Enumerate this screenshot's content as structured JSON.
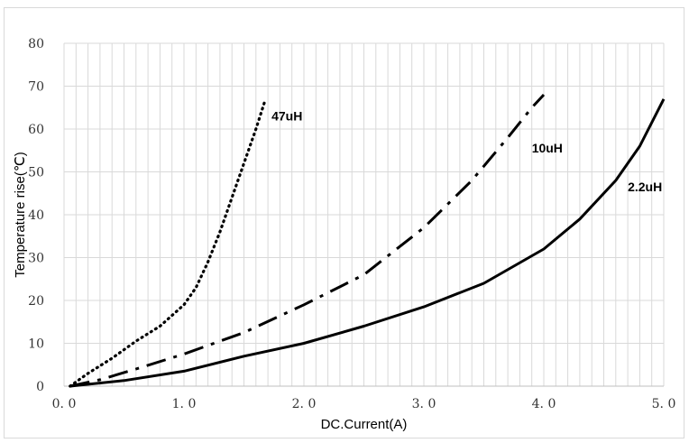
{
  "chart_data": {
    "type": "line",
    "xlabel": "DC.Current(A)",
    "ylabel": "Temperature rise(℃)",
    "xlim": [
      0,
      5
    ],
    "ylim": [
      0,
      80
    ],
    "x_ticks": [
      "0. 0",
      "1. 0",
      "2. 0",
      "3. 0",
      "4. 0",
      "5. 0"
    ],
    "y_ticks": [
      "0",
      "10",
      "20",
      "30",
      "40",
      "50",
      "60",
      "70",
      "80"
    ],
    "x_minor_step": 0.1,
    "y_major_step": 10,
    "grid": true,
    "series": [
      {
        "name": "47uH",
        "line_style": "dotted",
        "color": "#000000",
        "points": [
          [
            0.05,
            0
          ],
          [
            0.2,
            3
          ],
          [
            0.4,
            6.5
          ],
          [
            0.6,
            10.5
          ],
          [
            0.8,
            14
          ],
          [
            1.0,
            19
          ],
          [
            1.1,
            23
          ],
          [
            1.2,
            29
          ],
          [
            1.3,
            36
          ],
          [
            1.4,
            44
          ],
          [
            1.5,
            52
          ],
          [
            1.6,
            60
          ],
          [
            1.68,
            67
          ]
        ]
      },
      {
        "name": "10uH",
        "line_style": "dash-dot",
        "color": "#000000",
        "points": [
          [
            0.05,
            0
          ],
          [
            0.3,
            1.5
          ],
          [
            0.6,
            4
          ],
          [
            1.0,
            7.5
          ],
          [
            1.5,
            12.5
          ],
          [
            2.0,
            19
          ],
          [
            2.5,
            26
          ],
          [
            3.0,
            37
          ],
          [
            3.4,
            48
          ],
          [
            3.7,
            58
          ],
          [
            3.9,
            65
          ],
          [
            4.0,
            68
          ]
        ]
      },
      {
        "name": "2.2uH",
        "line_style": "solid",
        "color": "#000000",
        "points": [
          [
            0.05,
            0
          ],
          [
            0.5,
            1.3
          ],
          [
            1.0,
            3.5
          ],
          [
            1.5,
            7
          ],
          [
            2.0,
            10
          ],
          [
            2.5,
            14
          ],
          [
            3.0,
            18.5
          ],
          [
            3.5,
            24
          ],
          [
            4.0,
            32
          ],
          [
            4.3,
            39
          ],
          [
            4.6,
            48
          ],
          [
            4.8,
            56
          ],
          [
            5.0,
            67
          ]
        ]
      }
    ]
  }
}
